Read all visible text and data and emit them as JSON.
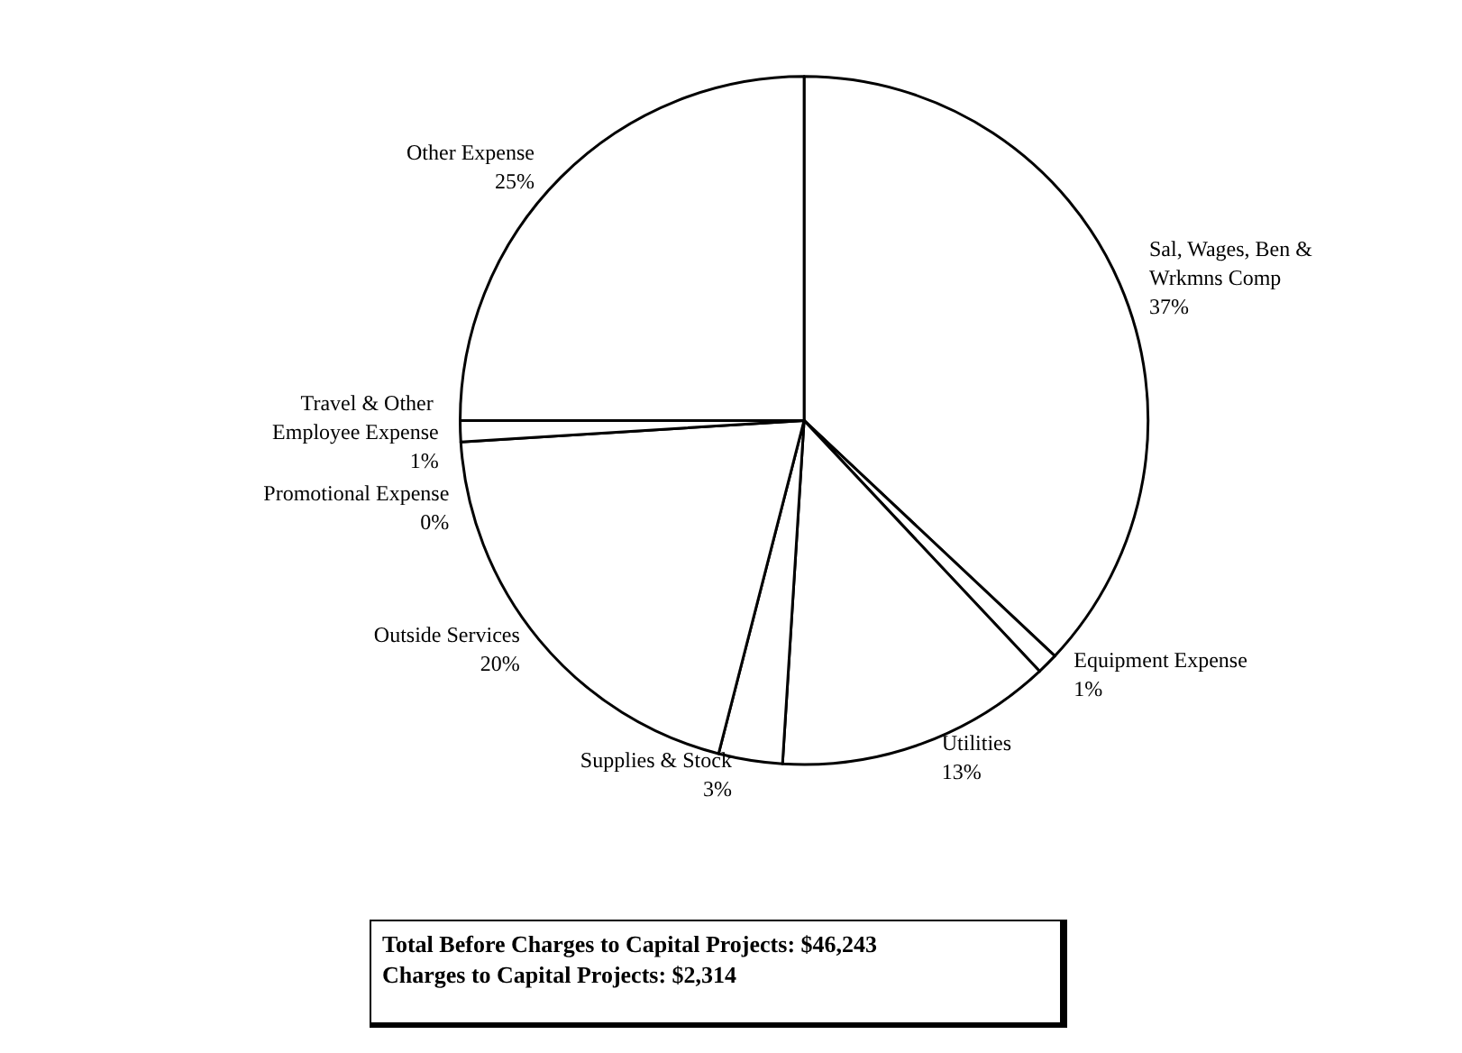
{
  "chart_data": {
    "type": "pie",
    "categories": [
      "Sal, Wages, Ben & Wrkmns Comp",
      "Equipment Expense",
      "Utilities",
      "Supplies & Stock",
      "Outside Services",
      "Travel & Other Employee Expense",
      "Promotional Expense",
      "Other Expense"
    ],
    "values": [
      37,
      1,
      13,
      3,
      20,
      1,
      0,
      25
    ],
    "colors": [
      "#ffffff",
      "#ffffff",
      "#ffffff",
      "#ffffff",
      "#ffffff",
      "#ffffff",
      "#ffffff",
      "#ffffff"
    ],
    "value_labels": [
      "37%",
      "1%",
      "13%",
      "3%",
      "20%",
      "1%",
      "0%",
      "25%"
    ],
    "legend": false,
    "annotations": [
      "Total Before Charges to Capital Projects:  $46,243",
      "Charges to Capital Projects:  $2,314"
    ]
  }
}
